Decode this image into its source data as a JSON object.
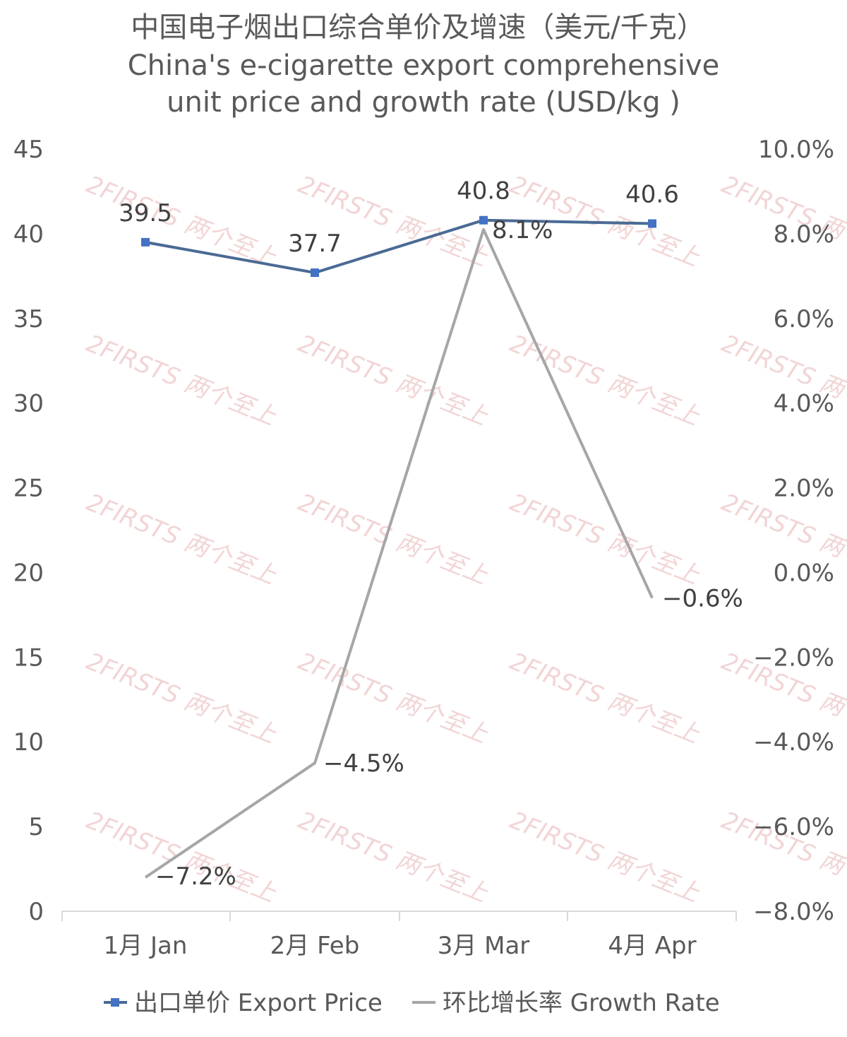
{
  "chart_data": {
    "type": "line",
    "title": [
      "中国电子烟出口综合单价及增速（美元/千克）",
      "China's e-cigarette export comprehensive",
      "unit price and growth rate (USD/kg )"
    ],
    "categories": [
      "1月 Jan",
      "2月 Feb",
      "3月 Mar",
      "4月 Apr"
    ],
    "y_left": {
      "min": 0,
      "max": 45,
      "step": 5,
      "ticks": [
        "0",
        "5",
        "10",
        "15",
        "20",
        "25",
        "30",
        "35",
        "40",
        "45"
      ]
    },
    "y_right": {
      "min": -8.0,
      "max": 10.0,
      "step": 2.0,
      "ticks": [
        "-8.0%",
        "-6.0%",
        "-4.0%",
        "-2.0%",
        "0.0%",
        "2.0%",
        "4.0%",
        "6.0%",
        "8.0%",
        "10.0%"
      ]
    },
    "series": [
      {
        "name": "出口单价 Export Price",
        "axis": "left",
        "color": "#4a6a94",
        "marker_color": "#4472c4",
        "values": [
          39.5,
          37.7,
          40.8,
          40.6
        ],
        "labels": [
          "39.5",
          "37.7",
          "40.8",
          "40.6"
        ]
      },
      {
        "name": "环比增长率 Growth Rate",
        "axis": "right",
        "color": "#a6a6a6",
        "values": [
          -7.2,
          -4.5,
          8.1,
          -0.6
        ],
        "labels": [
          "-7.2%",
          "-4.5%",
          "8.1%",
          "-0.6%"
        ]
      }
    ],
    "grid": false,
    "legend_position": "bottom",
    "watermark": "2FIRSTS 两个至上"
  }
}
